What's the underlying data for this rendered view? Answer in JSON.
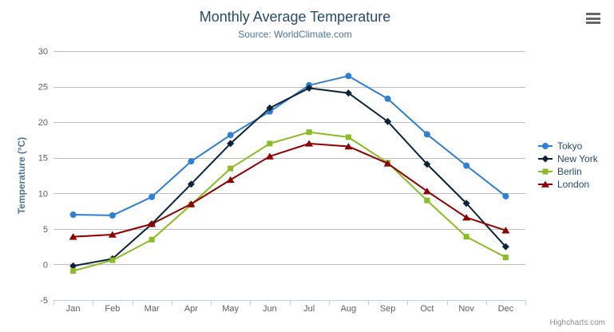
{
  "chart_data": {
    "type": "line",
    "title": "Monthly Average Temperature",
    "subtitle": "Source: WorldClimate.com",
    "categories": [
      "Jan",
      "Feb",
      "Mar",
      "Apr",
      "May",
      "Jun",
      "Jul",
      "Aug",
      "Sep",
      "Oct",
      "Nov",
      "Dec"
    ],
    "xlabel": "",
    "ylabel": "Temperature (°C)",
    "ylim": [
      -5,
      30
    ],
    "ytick_interval": 5,
    "grid": true,
    "legend_position": "right",
    "series": [
      {
        "name": "Tokyo",
        "color": "#2f7ed8",
        "marker": "circle",
        "values": [
          7.0,
          6.9,
          9.5,
          14.5,
          18.2,
          21.5,
          25.2,
          26.5,
          23.3,
          18.3,
          13.9,
          9.6
        ]
      },
      {
        "name": "New York",
        "color": "#0d233a",
        "marker": "diamond",
        "values": [
          -0.2,
          0.8,
          5.7,
          11.3,
          17.0,
          22.0,
          24.8,
          24.1,
          20.1,
          14.1,
          8.6,
          2.5
        ]
      },
      {
        "name": "Berlin",
        "color": "#8bbc21",
        "marker": "square",
        "values": [
          -0.9,
          0.6,
          3.5,
          8.4,
          13.5,
          17.0,
          18.6,
          17.9,
          14.3,
          9.0,
          3.9,
          1.0
        ]
      },
      {
        "name": "London",
        "color": "#910000",
        "marker": "triangle",
        "values": [
          3.9,
          4.2,
          5.7,
          8.5,
          11.9,
          15.2,
          17.0,
          16.6,
          14.2,
          10.3,
          6.6,
          4.8
        ]
      }
    ]
  },
  "credits": "Highcharts.com",
  "icons": {
    "menu": "hamburger-icon"
  },
  "colors": {
    "title": "#274b6d",
    "subtitle": "#4d759e",
    "axis_title": "#4d759e",
    "axis_label": "#606060",
    "grid_line": "#c0c0c0",
    "axis_line": "#c0d0e0",
    "legend_text": "#274b6d",
    "credits_text": "#909090",
    "menu_icon": "#666666",
    "background": "#ffffff"
  }
}
